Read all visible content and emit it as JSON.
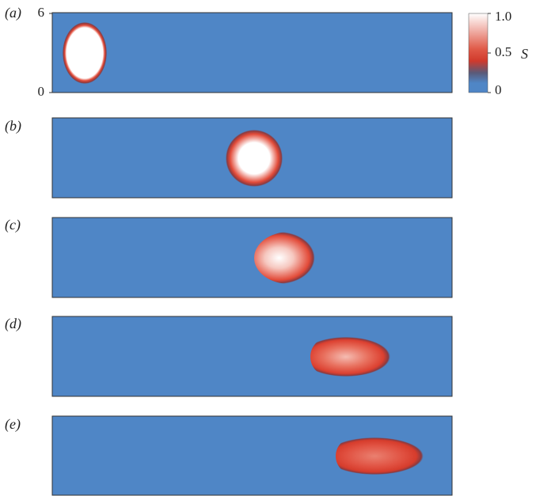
{
  "panels": [
    {
      "label": "(a)"
    },
    {
      "label": "(b)"
    },
    {
      "label": "(c)"
    },
    {
      "label": "(d)"
    },
    {
      "label": "(e)"
    }
  ],
  "yaxis": {
    "lim": [
      0,
      6
    ],
    "ticks": [
      0,
      6
    ]
  },
  "colorbar": {
    "label": "S",
    "lim": [
      0,
      1
    ],
    "ticks": [
      {
        "value": 0,
        "label": "0"
      },
      {
        "value": 0.5,
        "label": "0.5"
      },
      {
        "value": 1,
        "label": "1.0"
      }
    ]
  }
}
